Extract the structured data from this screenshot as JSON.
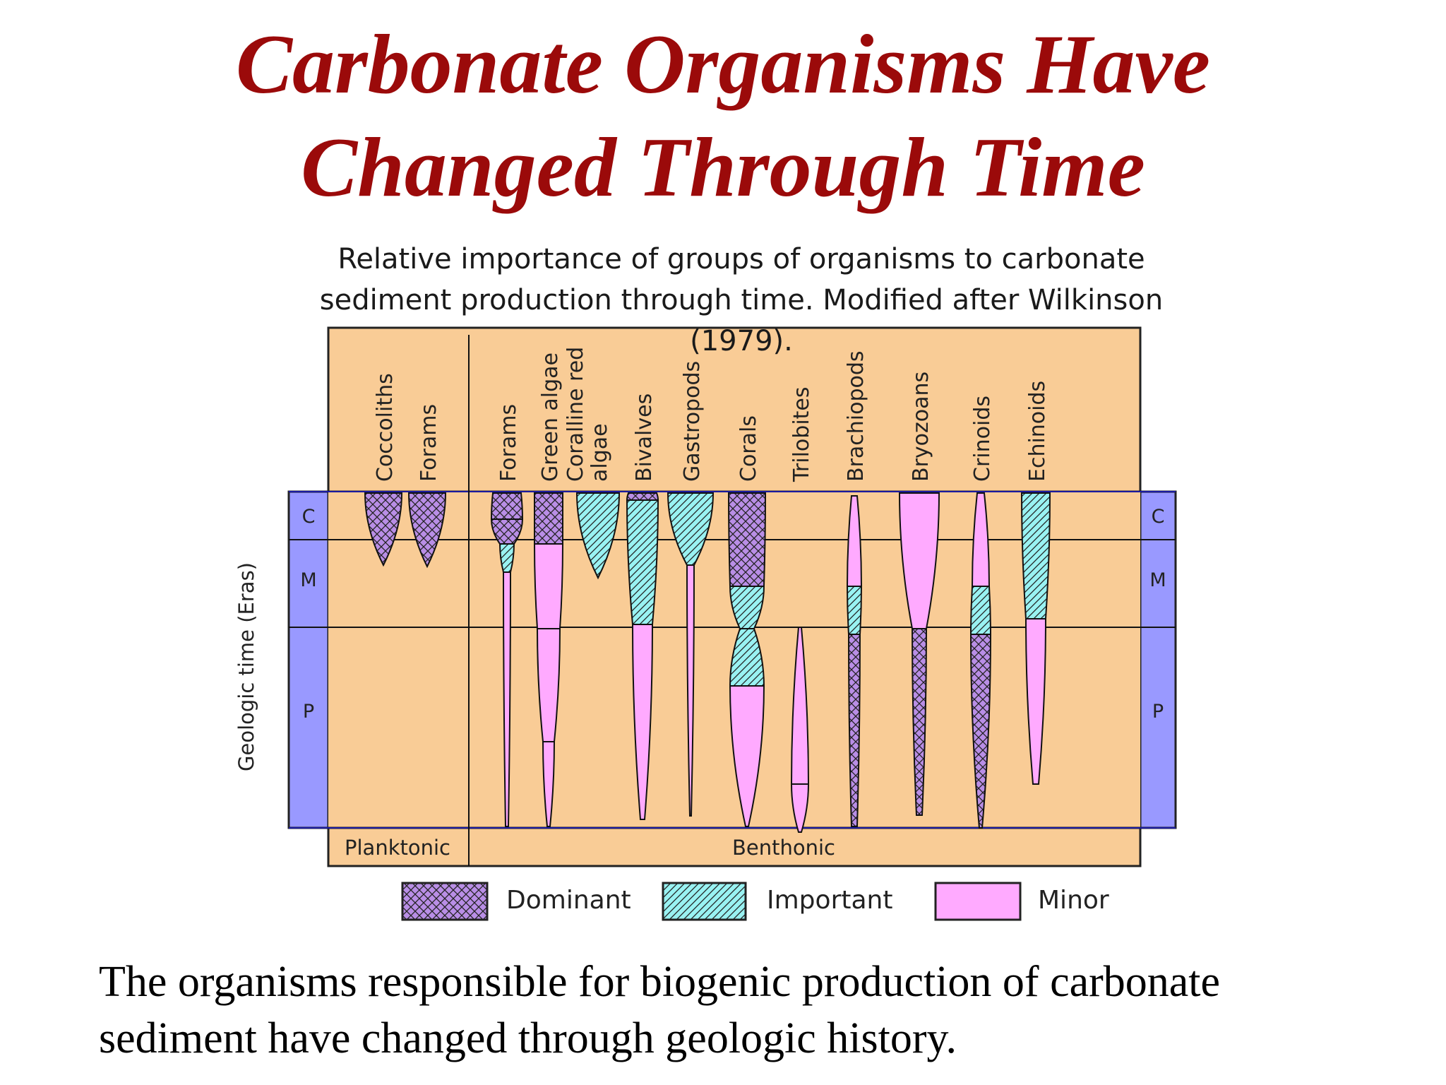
{
  "title": {
    "line1": "Carbonate Organisms Have",
    "line2": "Changed Through Time"
  },
  "caption": {
    "line1": "Relative importance of groups of organisms to carbonate",
    "line2": "sediment production through time.  Modified after Wilkinson (1979)."
  },
  "y_axis_label": "Geologic time (Eras)",
  "eras": [
    "C",
    "M",
    "P"
  ],
  "groups": [
    {
      "label": "Planktonic"
    },
    {
      "label": "Benthonic"
    }
  ],
  "organisms": [
    {
      "lines": [
        "Coccoliths"
      ],
      "group": "Planktonic"
    },
    {
      "lines": [
        "Forams"
      ],
      "group": "Planktonic"
    },
    {
      "lines": [
        "Forams"
      ],
      "group": "Benthonic"
    },
    {
      "lines": [
        "Green algae"
      ],
      "group": "Benthonic"
    },
    {
      "lines": [
        "Coralline red",
        "algae"
      ],
      "group": "Benthonic"
    },
    {
      "lines": [
        "Bivalves"
      ],
      "group": "Benthonic"
    },
    {
      "lines": [
        "Gastropods"
      ],
      "group": "Benthonic"
    },
    {
      "lines": [
        "Corals"
      ],
      "group": "Benthonic"
    },
    {
      "lines": [
        "Trilobites"
      ],
      "group": "Benthonic"
    },
    {
      "lines": [
        "Brachiopods"
      ],
      "group": "Benthonic"
    },
    {
      "lines": [
        "Bryozoans"
      ],
      "group": "Benthonic"
    },
    {
      "lines": [
        "Crinoids"
      ],
      "group": "Benthonic"
    },
    {
      "lines": [
        "Echinoids"
      ],
      "group": "Benthonic"
    }
  ],
  "legend": [
    {
      "key": "dominant",
      "label": "Dominant"
    },
    {
      "key": "important",
      "label": "Important"
    },
    {
      "key": "minor",
      "label": "Minor"
    }
  ],
  "colors": {
    "title": "#9b0a0a",
    "panel": "#f9cc96",
    "era_bar": "#9999ff",
    "dominant": "#b98ee6",
    "important": "#99f2f2",
    "minor": "#ffaaff"
  },
  "body": {
    "line1": "The organisms responsible for biogenic production of carbonate",
    "line2": "sediment have changed through geologic history."
  }
}
